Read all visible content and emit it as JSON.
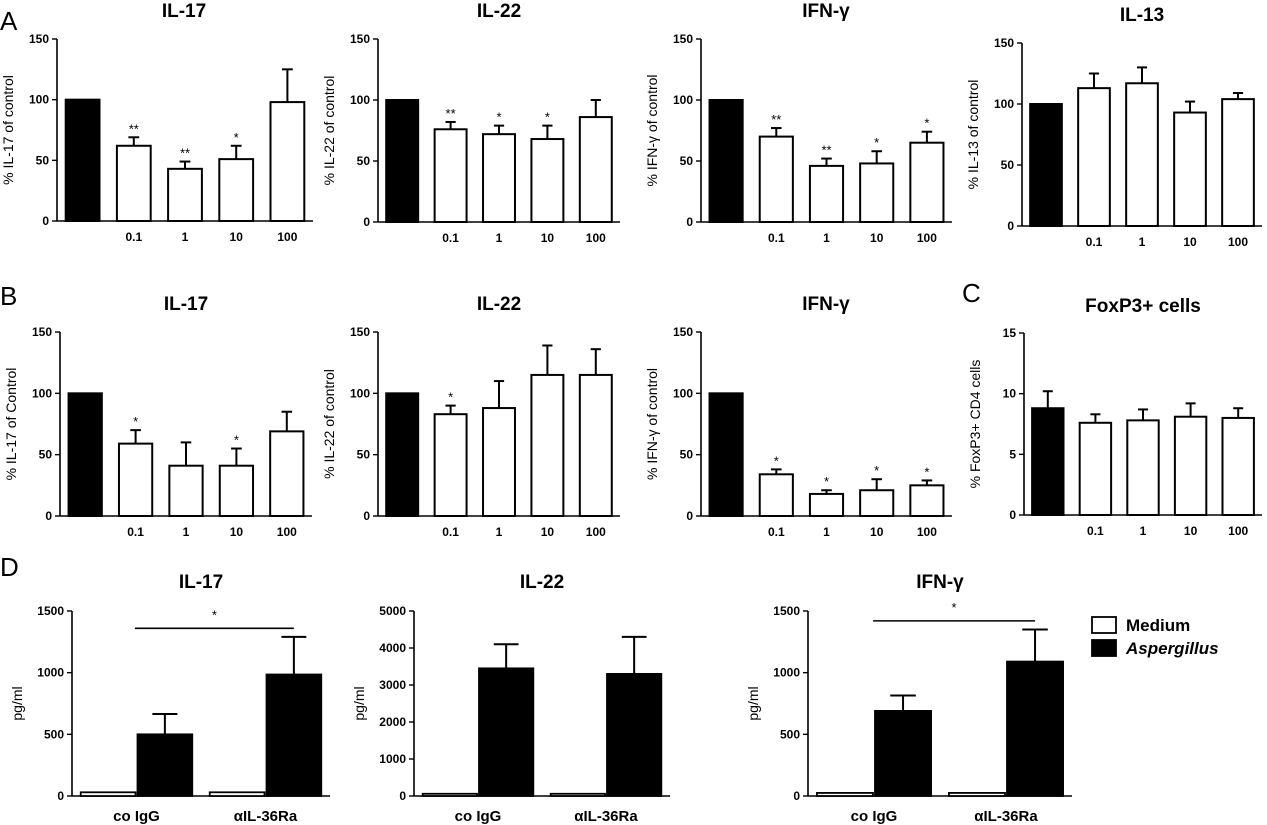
{
  "panel_letters": [
    "A",
    "B",
    "C",
    "D"
  ],
  "chart_data": [
    {
      "id": "A1",
      "panel": "A",
      "type": "bar",
      "title": "IL-17",
      "ylabel": "% IL-17 of control",
      "ylim": [
        0,
        150
      ],
      "yticks": [
        0,
        50,
        100,
        150
      ],
      "categories": [
        "",
        "0.1",
        "1",
        "10",
        "100"
      ],
      "values": [
        100,
        62,
        43,
        51,
        98
      ],
      "errors": [
        0,
        7,
        6,
        11,
        27
      ],
      "fills": [
        "black",
        "white",
        "white",
        "white",
        "white"
      ],
      "stars": [
        "",
        "**",
        "**",
        "*",
        ""
      ]
    },
    {
      "id": "A2",
      "panel": "A",
      "type": "bar",
      "title": "IL-22",
      "ylabel": "% IL-22 of control",
      "ylim": [
        0,
        150
      ],
      "yticks": [
        0,
        50,
        100,
        150
      ],
      "categories": [
        "",
        "0.1",
        "1",
        "10",
        "100"
      ],
      "values": [
        100,
        76,
        72,
        68,
        86
      ],
      "errors": [
        0,
        6,
        7,
        11,
        14
      ],
      "fills": [
        "black",
        "white",
        "white",
        "white",
        "white"
      ],
      "stars": [
        "",
        "**",
        "*",
        "*",
        ""
      ]
    },
    {
      "id": "A3",
      "panel": "A",
      "type": "bar",
      "title": "IFN-γ",
      "ylabel": "% IFN-γ of control",
      "ylim": [
        0,
        150
      ],
      "yticks": [
        0,
        50,
        100,
        150
      ],
      "categories": [
        "",
        "0.1",
        "1",
        "10",
        "100"
      ],
      "values": [
        100,
        70,
        46,
        48,
        65
      ],
      "errors": [
        0,
        7,
        6,
        10,
        9
      ],
      "fills": [
        "black",
        "white",
        "white",
        "white",
        "white"
      ],
      "stars": [
        "",
        "**",
        "**",
        "*",
        "*"
      ]
    },
    {
      "id": "A4",
      "panel": "A",
      "type": "bar",
      "title": "IL-13",
      "ylabel": "% IL-13 of control",
      "ylim": [
        0,
        150
      ],
      "yticks": [
        0,
        50,
        100,
        150
      ],
      "categories": [
        "",
        "0.1",
        "1",
        "10",
        "100"
      ],
      "values": [
        100,
        113,
        117,
        93,
        104
      ],
      "errors": [
        0,
        12,
        13,
        9,
        5
      ],
      "fills": [
        "black",
        "white",
        "white",
        "white",
        "white"
      ],
      "stars": [
        "",
        "",
        "",
        "",
        ""
      ]
    },
    {
      "id": "B1",
      "panel": "B",
      "type": "bar",
      "title": "IL-17",
      "ylabel": "% IL-17 of Control",
      "ylim": [
        0,
        150
      ],
      "yticks": [
        0,
        50,
        100,
        150
      ],
      "categories": [
        "",
        "0.1",
        "1",
        "10",
        "100"
      ],
      "values": [
        100,
        59,
        41,
        41,
        69
      ],
      "errors": [
        0,
        11,
        19,
        14,
        16
      ],
      "fills": [
        "black",
        "white",
        "white",
        "white",
        "white"
      ],
      "stars": [
        "",
        "*",
        "",
        "*",
        ""
      ]
    },
    {
      "id": "B2",
      "panel": "B",
      "type": "bar",
      "title": "IL-22",
      "ylabel": "% IL-22 of control",
      "ylim": [
        0,
        150
      ],
      "yticks": [
        0,
        50,
        100,
        150
      ],
      "categories": [
        "",
        "0.1",
        "1",
        "10",
        "100"
      ],
      "values": [
        100,
        83,
        88,
        115,
        115
      ],
      "errors": [
        0,
        7,
        22,
        24,
        21
      ],
      "fills": [
        "black",
        "white",
        "white",
        "white",
        "white"
      ],
      "stars": [
        "",
        "*",
        "",
        "",
        ""
      ]
    },
    {
      "id": "B3",
      "panel": "B",
      "type": "bar",
      "title": "IFN-γ",
      "ylabel": "% IFN-γ of control",
      "ylim": [
        0,
        150
      ],
      "yticks": [
        0,
        50,
        100,
        150
      ],
      "categories": [
        "",
        "0.1",
        "1",
        "10",
        "100"
      ],
      "values": [
        100,
        34,
        18,
        21,
        25
      ],
      "errors": [
        0,
        4,
        3,
        9,
        4
      ],
      "fills": [
        "black",
        "white",
        "white",
        "white",
        "white"
      ],
      "stars": [
        "",
        "*",
        "*",
        "*",
        "*"
      ]
    },
    {
      "id": "C1",
      "panel": "C",
      "type": "bar",
      "title": "FoxP3+ cells",
      "ylabel": "% FoxP3+ CD4 cells",
      "ylim": [
        0,
        15
      ],
      "yticks": [
        0,
        5,
        10,
        15
      ],
      "categories": [
        "",
        "0.1",
        "1",
        "10",
        "100"
      ],
      "values": [
        8.8,
        7.6,
        7.8,
        8.1,
        8.0
      ],
      "errors": [
        1.4,
        0.7,
        0.9,
        1.1,
        0.8
      ],
      "fills": [
        "black",
        "white",
        "white",
        "white",
        "white"
      ],
      "stars": [
        "",
        "",
        "",
        "",
        ""
      ]
    },
    {
      "id": "D1",
      "panel": "D",
      "type": "grouped-bar",
      "title": "IL-17",
      "ylabel": "pg/ml",
      "ylim": [
        0,
        1500
      ],
      "yticks": [
        0,
        500,
        1000,
        1500
      ],
      "categories": [
        "co IgG",
        "αIL-36Ra"
      ],
      "series": [
        {
          "name": "Medium",
          "fill": "white",
          "values": [
            30,
            30
          ],
          "errors": [
            0,
            0
          ]
        },
        {
          "name": "Aspergillus",
          "fill": "black",
          "values": [
            500,
            985
          ],
          "errors": [
            165,
            305
          ]
        }
      ],
      "significance": {
        "label": "*",
        "value": 1360
      }
    },
    {
      "id": "D2",
      "panel": "D",
      "type": "grouped-bar",
      "title": "IL-22",
      "ylabel": "pg/ml",
      "ylim": [
        0,
        5000
      ],
      "yticks": [
        0,
        1000,
        2000,
        3000,
        4000,
        5000
      ],
      "categories": [
        "co IgG",
        "αIL-36Ra"
      ],
      "series": [
        {
          "name": "Medium",
          "fill": "white",
          "values": [
            60,
            60
          ],
          "errors": [
            0,
            0
          ]
        },
        {
          "name": "Aspergillus",
          "fill": "black",
          "values": [
            3450,
            3300
          ],
          "errors": [
            650,
            1000
          ]
        }
      ],
      "significance": null
    },
    {
      "id": "D3",
      "panel": "D",
      "type": "grouped-bar",
      "title": "IFN-γ",
      "ylabel": "pg/ml",
      "ylim": [
        0,
        1500
      ],
      "yticks": [
        0,
        500,
        1000,
        1500
      ],
      "categories": [
        "co IgG",
        "αIL-36Ra"
      ],
      "series": [
        {
          "name": "Medium",
          "fill": "white",
          "values": [
            25,
            25
          ],
          "errors": [
            0,
            0
          ]
        },
        {
          "name": "Aspergillus",
          "fill": "black",
          "values": [
            690,
            1090
          ],
          "errors": [
            125,
            260
          ]
        }
      ],
      "significance": {
        "label": "*",
        "value": 1420
      }
    }
  ],
  "legend": {
    "placement": "right of panel D",
    "items": [
      {
        "label": "Medium",
        "fill": "white",
        "italic": false
      },
      {
        "label": "Aspergillus",
        "fill": "black",
        "italic": true
      }
    ]
  }
}
